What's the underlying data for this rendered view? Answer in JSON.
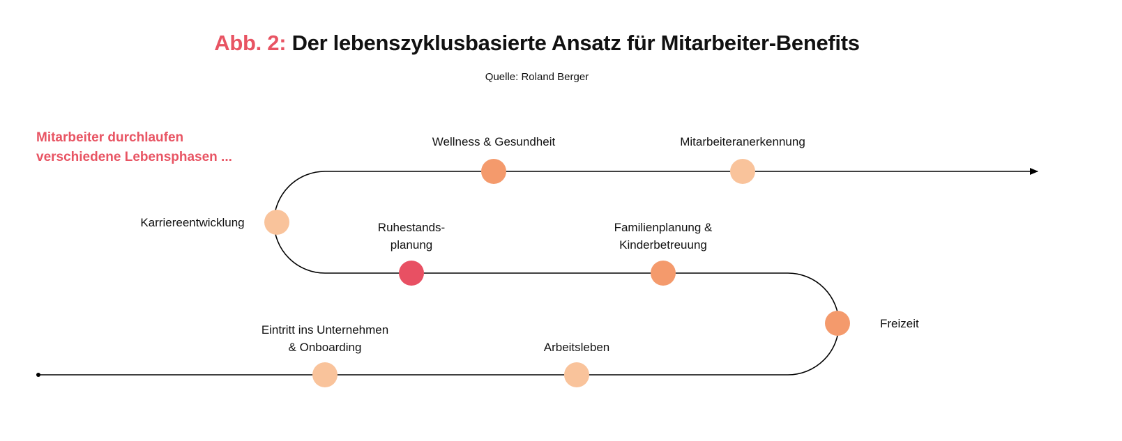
{
  "title": {
    "prefix": "Abb. 2:",
    "text": "Der lebenszyklusbasierte Ansatz für Mitarbeiter-Benefits"
  },
  "source": "Quelle: Roland Berger",
  "intro": {
    "line1": "Mitarbeiter durchlaufen",
    "line2": "verschiedene Lebensphasen ..."
  },
  "colors": {
    "accent": "#e85463",
    "light": "#f9c39b",
    "orange": "#f49a6c",
    "red": "#e85063"
  },
  "stages": [
    {
      "line1": "Eintritt ins Unternehmen",
      "line2": "& Onboarding",
      "color": "#f9c39b"
    },
    {
      "line1": "Arbeitsleben",
      "line2": "",
      "color": "#f9c39b"
    },
    {
      "line1": "Freizeit",
      "line2": "",
      "color": "#f49a6c"
    },
    {
      "line1": "Familienplanung &",
      "line2": "Kinderbetreuung",
      "color": "#f49a6c"
    },
    {
      "line1": "Ruhestands-",
      "line2": "planung",
      "color": "#e85063"
    },
    {
      "line1": "Karriereentwicklung",
      "line2": "",
      "color": "#f9c39b"
    },
    {
      "line1": "Wellness & Gesundheit",
      "line2": "",
      "color": "#f49a6c"
    },
    {
      "line1": "Mitarbeiteranerkennung",
      "line2": "",
      "color": "#f9c39b"
    }
  ]
}
